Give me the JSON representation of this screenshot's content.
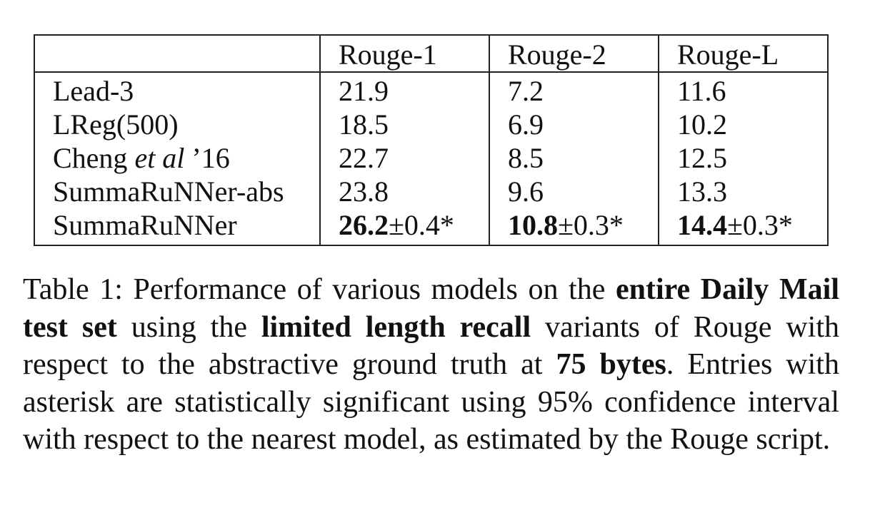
{
  "table": {
    "headers": [
      "",
      "Rouge-1",
      "Rouge-2",
      "Rouge-L"
    ],
    "rows": [
      {
        "model_prefix": "Lead-3",
        "model_italic": "",
        "model_suffix": "",
        "r1_bold": "",
        "r1": "21.9",
        "r2_bold": "",
        "r2": "7.2",
        "rl_bold": "",
        "rl": "11.6"
      },
      {
        "model_prefix": "LReg(500)",
        "model_italic": "",
        "model_suffix": "",
        "r1_bold": "",
        "r1": "18.5",
        "r2_bold": "",
        "r2": "6.9",
        "rl_bold": "",
        "rl": "10.2"
      },
      {
        "model_prefix": "Cheng ",
        "model_italic": "et al",
        "model_suffix": " ’16",
        "r1_bold": "",
        "r1": "22.7",
        "r2_bold": "",
        "r2": "8.5",
        "rl_bold": "",
        "rl": "12.5"
      },
      {
        "model_prefix": "SummaRuNNer-abs",
        "model_italic": "",
        "model_suffix": "",
        "r1_bold": "",
        "r1": "23.8",
        "r2_bold": "",
        "r2": "9.6",
        "rl_bold": "",
        "rl": "13.3"
      },
      {
        "model_prefix": "SummaRuNNer",
        "model_italic": "",
        "model_suffix": "",
        "r1_bold": "26.2",
        "r1": "±0.4*",
        "r2_bold": "10.8",
        "r2": "±0.3*",
        "rl_bold": "14.4",
        "rl": "±0.3*"
      }
    ]
  },
  "caption": {
    "t1": "Table 1: Performance of various models on the ",
    "b1": "entire Daily Mail test set",
    "t2": " using the ",
    "b2": "limited length recall",
    "t3": " variants of Rouge with respect to the abstractive ground truth at ",
    "b3": "75 bytes",
    "t4": ". Entries with asterisk are statistically significant using 95% confidence interval with respect to the nearest model, as estimated by the Rouge script."
  }
}
